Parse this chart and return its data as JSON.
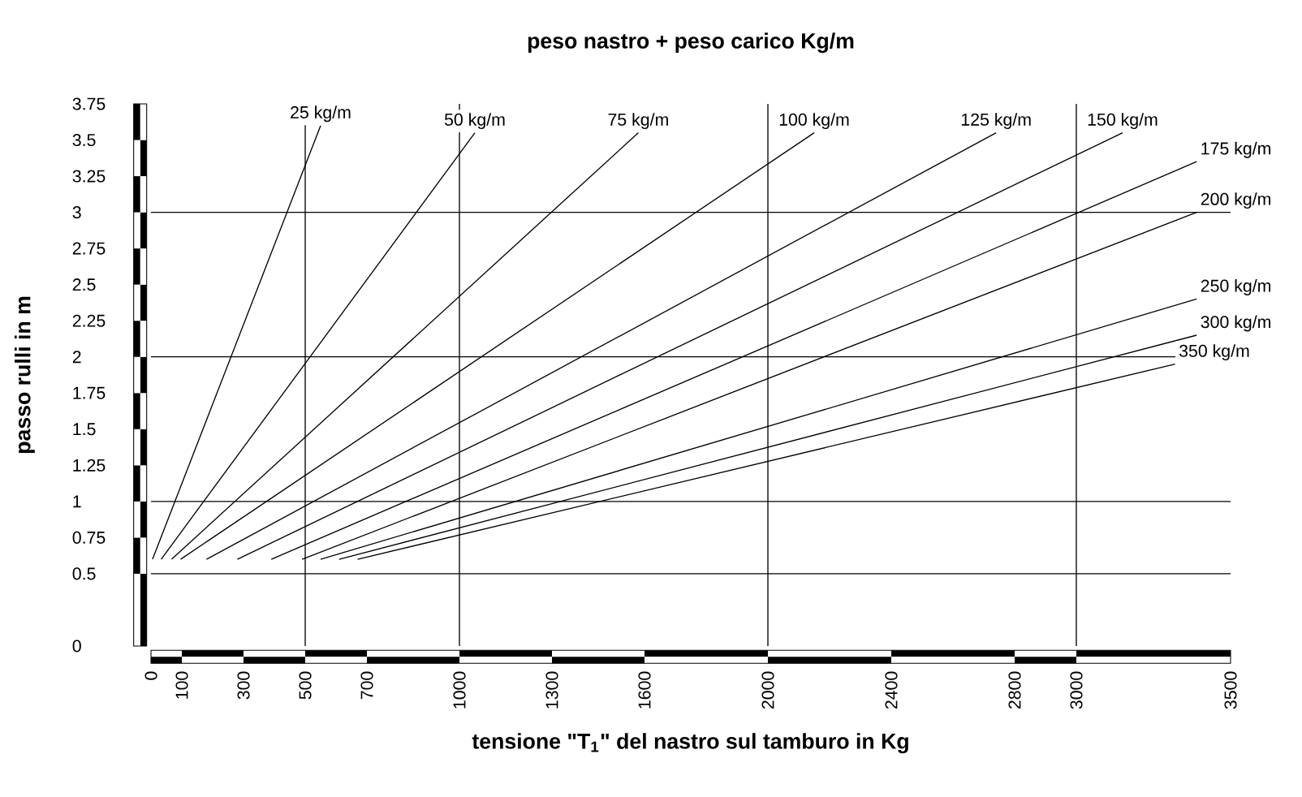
{
  "chart_data": {
    "type": "line",
    "title": "peso nastro + peso carico   Kg/m",
    "xlabel": "tensione \"**T$_{1}$**\" del nastro sul tamburo in Kg",
    "ylabel": "passo rulli in m",
    "xlim": [
      0,
      3500
    ],
    "xticks": [
      0,
      100,
      300,
      500,
      700,
      1000,
      1300,
      1600,
      2000,
      2400,
      2800,
      3000,
      3500
    ],
    "ylim": [
      0,
      3.75
    ],
    "yticks": [
      0,
      0.5,
      0.75,
      1,
      1.25,
      1.5,
      1.75,
      2,
      2.25,
      2.5,
      2.75,
      3,
      3.25,
      3.5,
      3.75
    ],
    "marker": "none",
    "line_style": "solid",
    "series": [
      {
        "name": "25 kg/m",
        "color": "#000000",
        "x": [
          5,
          550
        ],
        "values": [
          0.6,
          3.6
        ]
      },
      {
        "name": "50 kg/m",
        "color": "#000000",
        "x": [
          33,
          1050
        ],
        "values": [
          0.6,
          3.55
        ]
      },
      {
        "name": "75 kg/m",
        "color": "#000000",
        "x": [
          67,
          1580
        ],
        "values": [
          0.6,
          3.55
        ]
      },
      {
        "name": "100 kg/m",
        "color": "#000000",
        "x": [
          96,
          2150
        ],
        "values": [
          0.6,
          3.55
        ]
      },
      {
        "name": "125 kg/m",
        "color": "#000000",
        "x": [
          180,
          2740
        ],
        "values": [
          0.6,
          3.55
        ]
      },
      {
        "name": "150 kg/m",
        "color": "#000000",
        "x": [
          280,
          3150
        ],
        "values": [
          0.6,
          3.55
        ]
      },
      {
        "name": "175 kg/m",
        "color": "#000000",
        "x": [
          390,
          3390
        ],
        "values": [
          0.6,
          3.35
        ]
      },
      {
        "name": "200 kg/m",
        "color": "#000000",
        "x": [
          490,
          3390
        ],
        "values": [
          0.6,
          3.0
        ]
      },
      {
        "name": "250 kg/m",
        "color": "#000000",
        "x": [
          550,
          3390
        ],
        "values": [
          0.6,
          2.4
        ]
      },
      {
        "name": "300 kg/m",
        "color": "#000000",
        "x": [
          610,
          3390
        ],
        "values": [
          0.6,
          2.15
        ]
      },
      {
        "name": "350 kg/m",
        "color": "#000000",
        "x": [
          670,
          3320
        ],
        "values": [
          0.6,
          1.95
        ]
      }
    ],
    "ref_lines": [
      {
        "axis": "x",
        "value": 500
      },
      {
        "axis": "x",
        "value": 1000
      },
      {
        "axis": "x",
        "value": 2000
      },
      {
        "axis": "x",
        "value": 3000
      },
      {
        "axis": "y",
        "value": 0.5
      },
      {
        "axis": "y",
        "value": 1
      },
      {
        "axis": "y",
        "value": 2
      },
      {
        "axis": "y",
        "value": 3
      }
    ]
  }
}
